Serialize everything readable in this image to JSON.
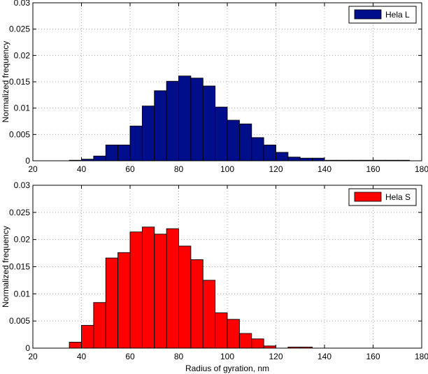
{
  "chart_data": [
    {
      "type": "bar",
      "title": "",
      "xlabel": "",
      "ylabel": "Normalized frequency",
      "xlim": [
        20,
        180
      ],
      "ylim": [
        0,
        0.03
      ],
      "xticks": [
        "20",
        "40",
        "60",
        "80",
        "100",
        "120",
        "140",
        "160",
        "180"
      ],
      "yticks": [
        "0",
        "0.005",
        "0.01",
        "0.015",
        "0.02",
        "0.025",
        "0.03"
      ],
      "grid": true,
      "legend": "top-right",
      "bin_width": 5,
      "series": [
        {
          "name": "Hela L",
          "color": "#000e8c",
          "bins_start": [
            35,
            40,
            45,
            50,
            55,
            60,
            65,
            70,
            75,
            80,
            85,
            90,
            95,
            100,
            105,
            110,
            115,
            120,
            125,
            130,
            135,
            140,
            145,
            150,
            155,
            160,
            165,
            170
          ],
          "values": [
            0.0001,
            0.0003,
            0.0009,
            0.003,
            0.003,
            0.0066,
            0.0104,
            0.0133,
            0.0151,
            0.0161,
            0.0157,
            0.0142,
            0.0102,
            0.0077,
            0.007,
            0.0044,
            0.003,
            0.0016,
            0.0007,
            0.0005,
            0.0005,
            0.0001,
            0.0001,
            0.0001,
            0.0001,
            0.0001,
            0.0001,
            0.0001
          ]
        }
      ]
    },
    {
      "type": "bar",
      "title": "",
      "xlabel": "Radius of gyration, nm",
      "ylabel": "Normalized frequency",
      "xlim": [
        20,
        180
      ],
      "ylim": [
        0,
        0.03
      ],
      "xticks": [
        "20",
        "40",
        "60",
        "80",
        "100",
        "120",
        "140",
        "160",
        "180"
      ],
      "yticks": [
        "0",
        "0.005",
        "0.01",
        "0.015",
        "0.02",
        "0.025",
        "0.03"
      ],
      "grid": true,
      "legend": "top-right",
      "bin_width": 5,
      "series": [
        {
          "name": "Hela S",
          "color": "#ff0000",
          "bins_start": [
            35,
            40,
            45,
            50,
            55,
            60,
            65,
            70,
            75,
            80,
            85,
            90,
            95,
            100,
            105,
            110,
            115,
            120,
            125,
            130,
            135
          ],
          "values": [
            0.0011,
            0.0042,
            0.0084,
            0.0166,
            0.0176,
            0.0214,
            0.0223,
            0.021,
            0.022,
            0.0188,
            0.0163,
            0.0125,
            0.0065,
            0.0053,
            0.0027,
            0.0017,
            0.0004,
            0.0,
            0.0002,
            0.0002,
            0.0
          ]
        }
      ]
    }
  ]
}
